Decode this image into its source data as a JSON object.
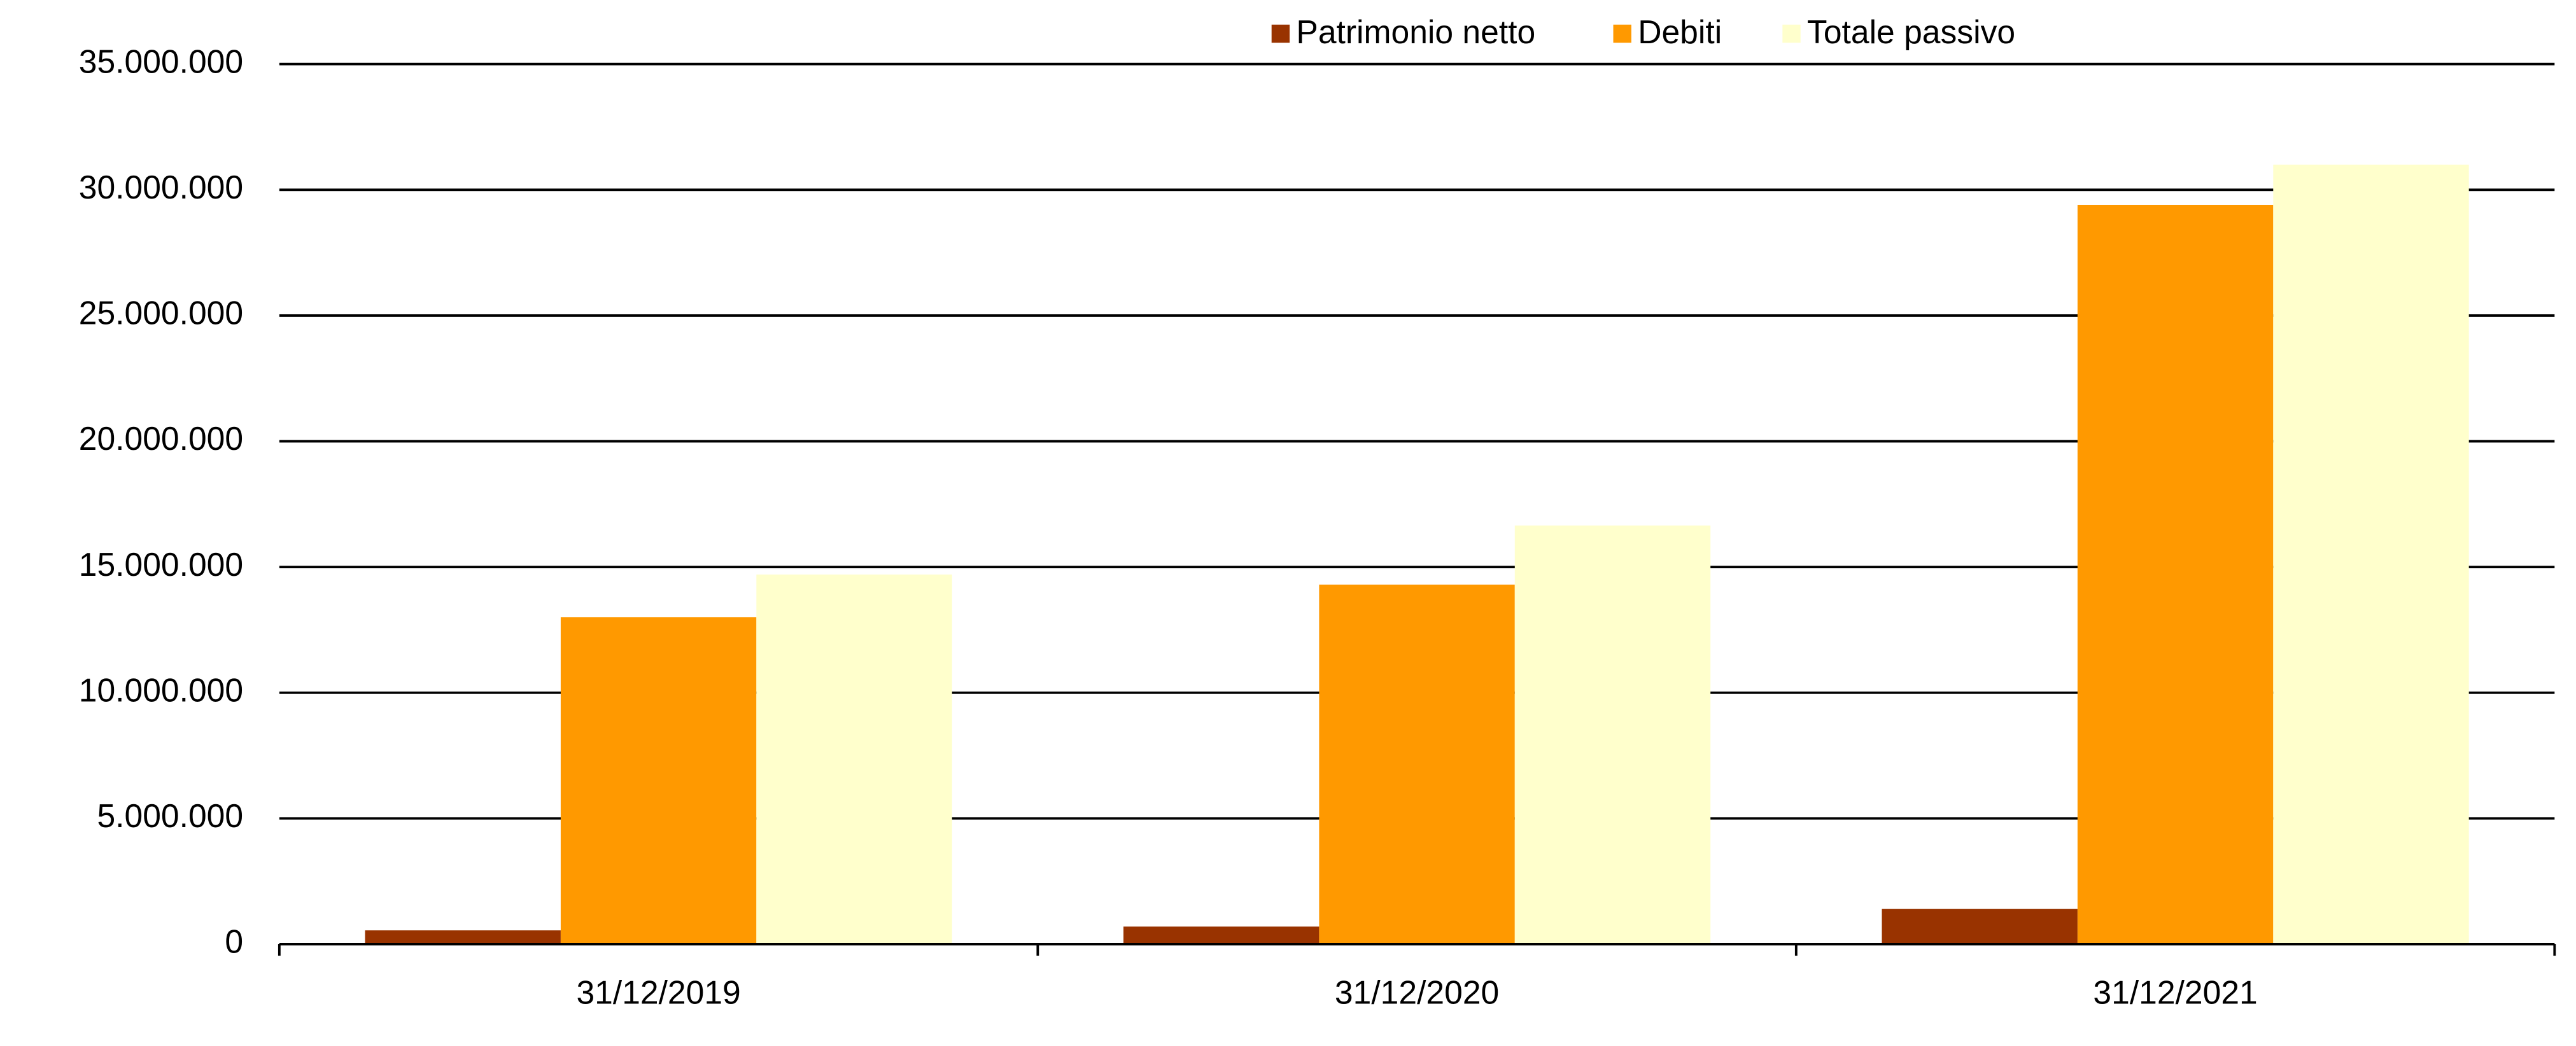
{
  "chart_data": {
    "type": "bar",
    "categories": [
      "31/12/2019",
      "31/12/2020",
      "31/12/2021"
    ],
    "series": [
      {
        "name": "Patrimonio netto",
        "color": "#993300",
        "values": [
          550000,
          700000,
          1400000
        ]
      },
      {
        "name": "Debiti",
        "color": "#ff9900",
        "values": [
          13000000,
          14300000,
          29400000
        ]
      },
      {
        "name": "Totale passivo",
        "color": "#ffffcc",
        "values": [
          14700000,
          16650000,
          31000000
        ]
      }
    ],
    "ylim": [
      0,
      35000000
    ],
    "yticks": [
      0,
      {
        "value": 5000000,
        "label": "5.000.000"
      },
      {
        "value": 10000000,
        "label": "10.000.000"
      },
      {
        "value": 15000000,
        "label": "15.000.000"
      },
      {
        "value": 20000000,
        "label": "20.000.000"
      },
      {
        "value": 25000000,
        "label": "25.000.000"
      },
      {
        "value": 30000000,
        "label": "30.000.000"
      },
      {
        "value": 35000000,
        "label": "35.000.000"
      }
    ],
    "grid": true,
    "legend": "top"
  }
}
